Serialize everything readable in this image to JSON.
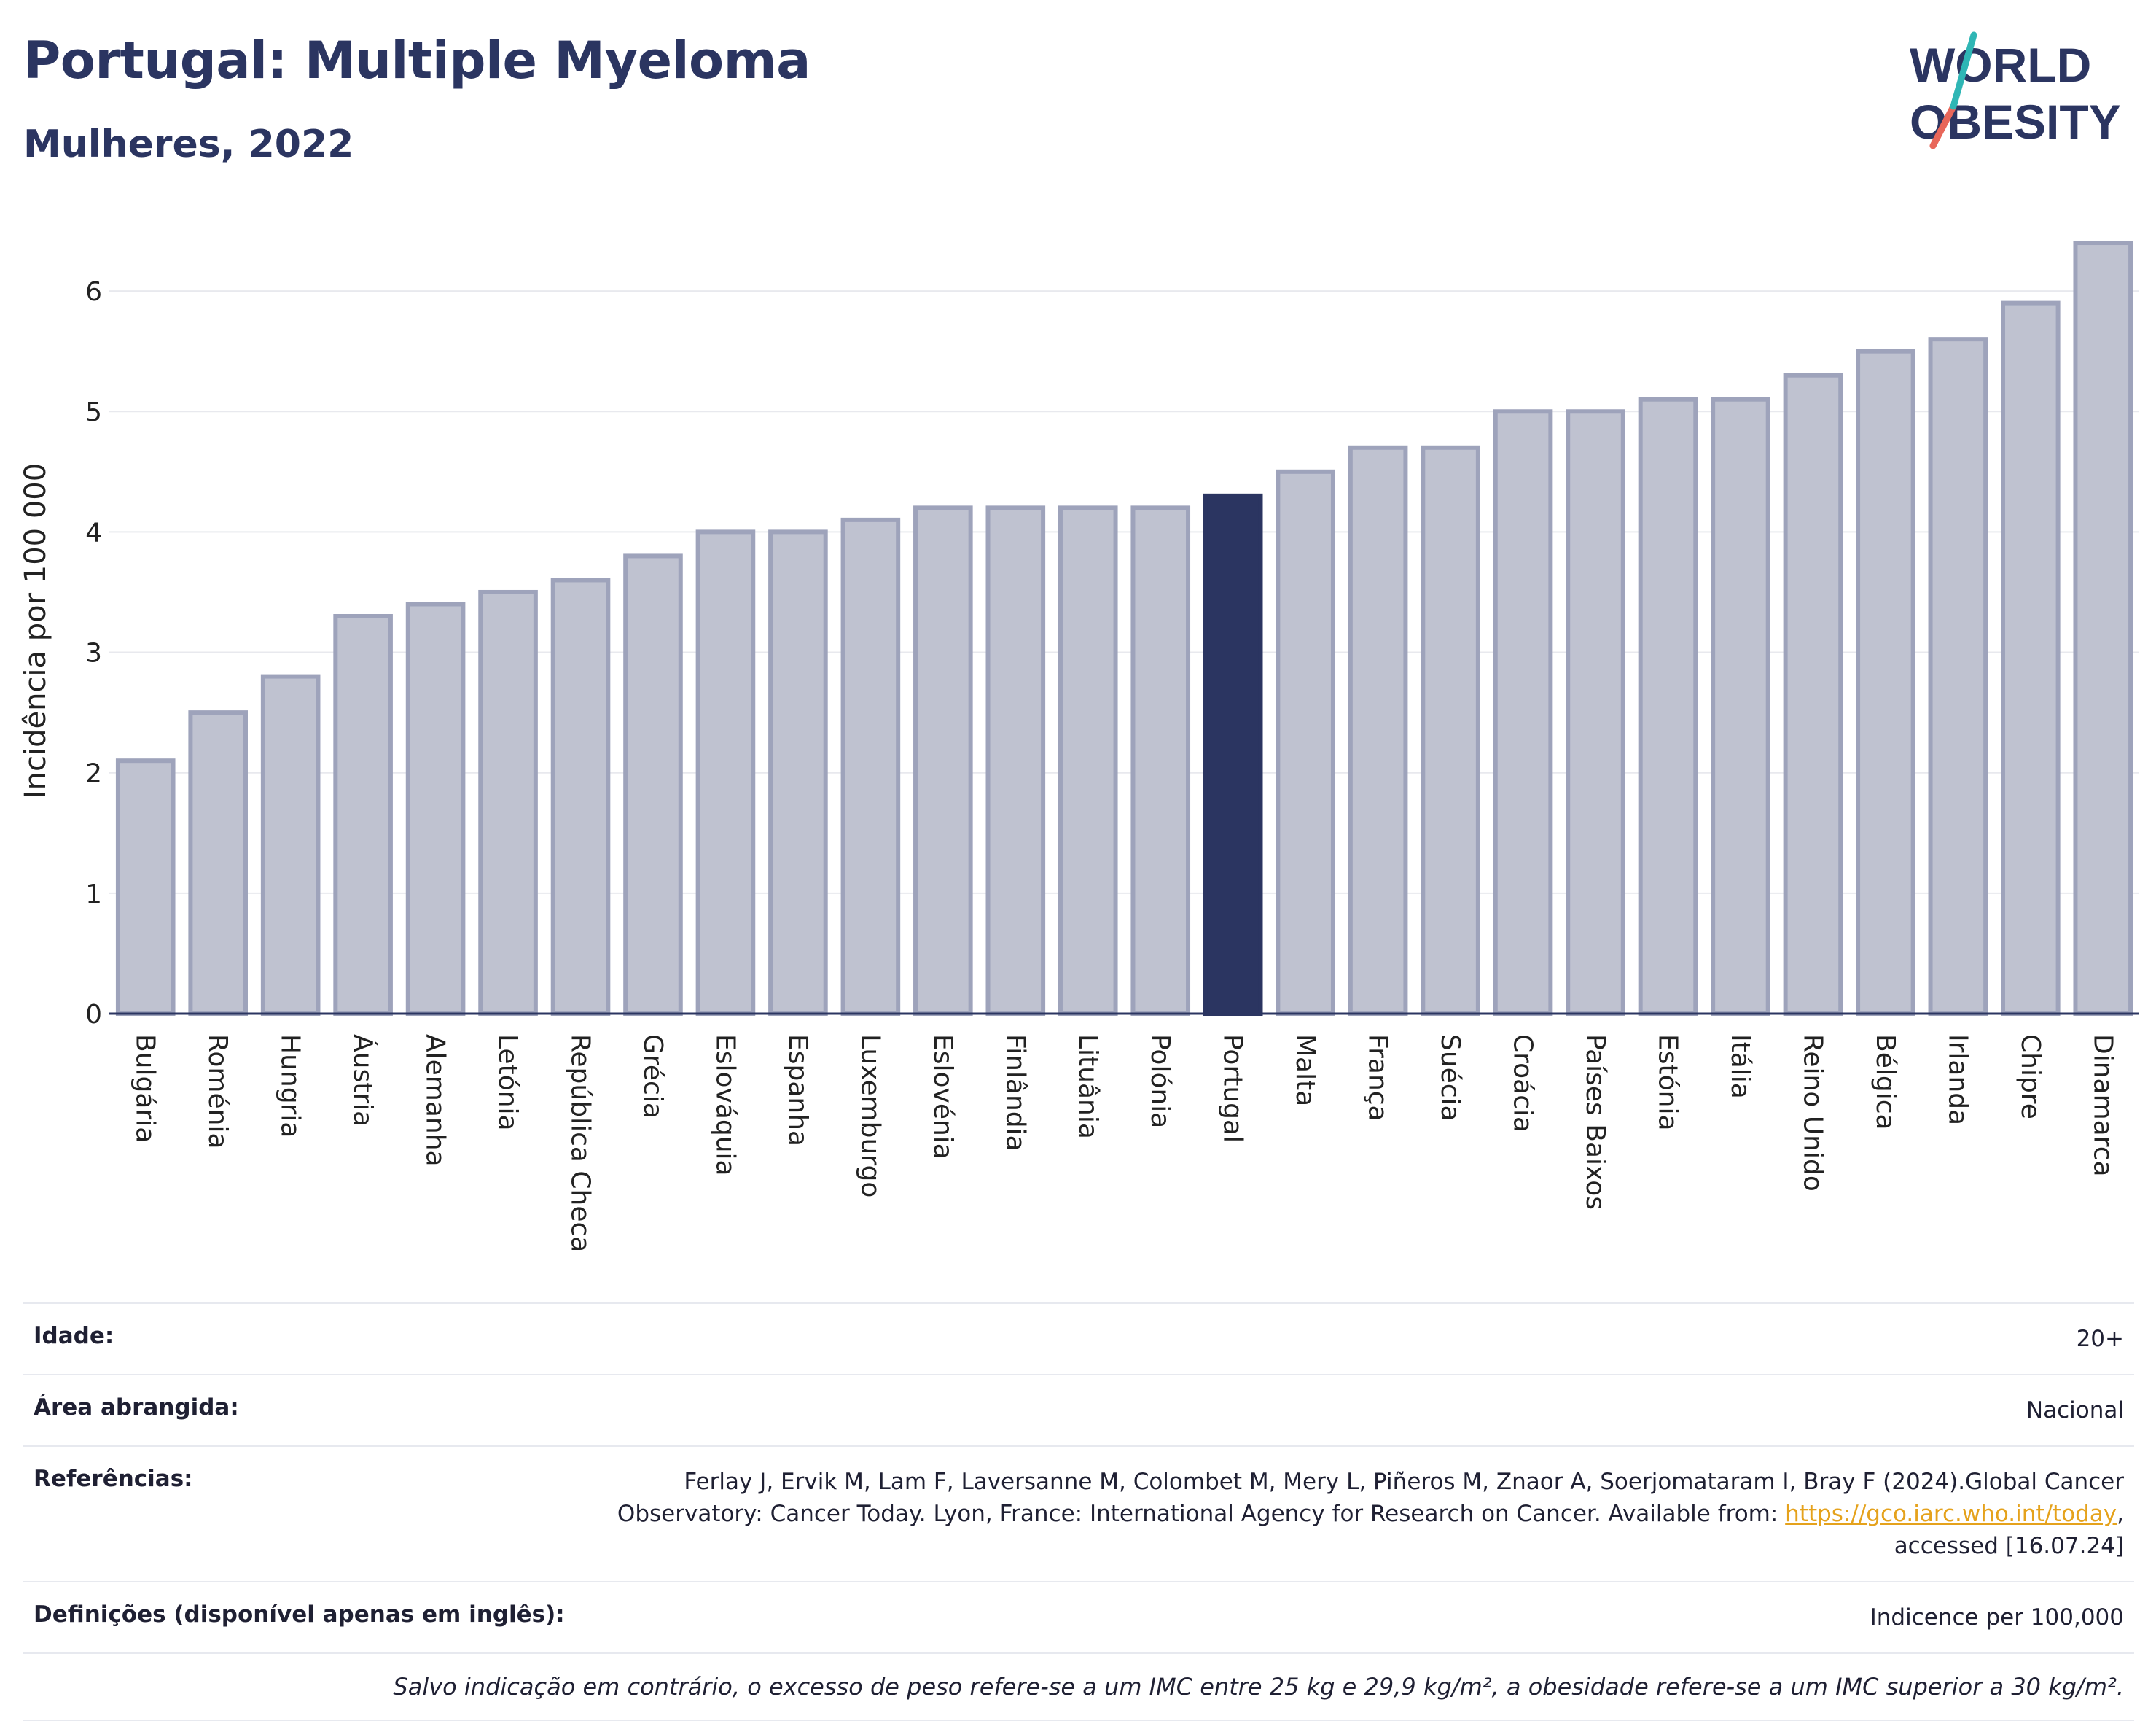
{
  "header": {
    "title": "Portugal: Multiple Myeloma",
    "subtitle": "Mulheres, 2022"
  },
  "logo": {
    "line1": "WORLD",
    "line2": "OBESITY"
  },
  "colors": {
    "bar": "#bfc2d0",
    "bar_stroke": "#9ea3bb",
    "highlight": "#2b3561",
    "accent1": "#2fb6b5",
    "accent2": "#e8675a"
  },
  "chart_data": {
    "type": "bar",
    "title": "Portugal: Multiple Myeloma",
    "subtitle": "Mulheres, 2022",
    "xlabel": "",
    "ylabel": "Incidência por 100 000",
    "ylim": [
      0,
      6.6
    ],
    "yticks": [
      0,
      1,
      2,
      3,
      4,
      5,
      6
    ],
    "grid": true,
    "highlight": "Portugal",
    "categories": [
      "Bulgária",
      "Roménia",
      "Hungria",
      "Áustria",
      "Alemanha",
      "Letónia",
      "República Checa",
      "Grécia",
      "Eslováquia",
      "Espanha",
      "Luxemburgo",
      "Eslovénia",
      "Finlândia",
      "Lituânia",
      "Polónia",
      "Portugal",
      "Malta",
      "França",
      "Suécia",
      "Croácia",
      "Países Baixos",
      "Estónia",
      "Itália",
      "Reino Unido",
      "Bélgica",
      "Irlanda",
      "Chipre",
      "Dinamarca"
    ],
    "values": [
      2.1,
      2.5,
      2.8,
      3.3,
      3.4,
      3.5,
      3.6,
      3.8,
      4.0,
      4.0,
      4.1,
      4.2,
      4.2,
      4.2,
      4.2,
      4.3,
      4.5,
      4.7,
      4.7,
      5.0,
      5.0,
      5.1,
      5.1,
      5.3,
      5.5,
      5.6,
      5.9,
      6.4
    ]
  },
  "info": {
    "age_label": "Idade:",
    "age_value": "20+",
    "area_label": "Área abrangida:",
    "area_value": "Nacional",
    "ref_label": "Referências:",
    "ref_text1": "Ferlay J, Ervik M, Lam F, Laversanne M, Colombet M, Mery L, Piñeros M, Znaor A, Soerjomataram I, Bray F (2024).Global Cancer",
    "ref_text2": "Observatory: Cancer Today. Lyon, France: International Agency for Research on Cancer. Available from: ",
    "ref_link": "https://gco.iarc.who.int/today",
    "ref_text3": "accessed [16.07.24]",
    "def_label": "Definições (disponível apenas em inglês):",
    "def_value": "Indicence per 100,000",
    "note": "Salvo indicação em contrário, o excesso de peso refere-se a um IMC entre 25 kg e 29,9 kg/m², a obesidade refere-se a um IMC superior a 30 kg/m²."
  }
}
